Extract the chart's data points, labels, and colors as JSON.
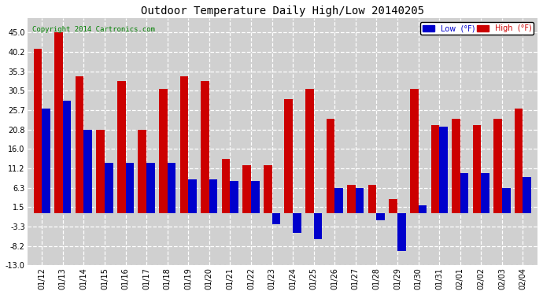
{
  "title": "Outdoor Temperature Daily High/Low 20140205",
  "copyright": "Copyright 2014 Cartronics.com",
  "legend_low": "Low  (°F)",
  "legend_high": "High  (°F)",
  "low_color": "#0000cc",
  "high_color": "#cc0000",
  "dates": [
    "01/12",
    "01/13",
    "01/14",
    "01/15",
    "01/16",
    "01/17",
    "01/18",
    "01/19",
    "01/20",
    "01/21",
    "01/22",
    "01/23",
    "01/24",
    "01/25",
    "01/26",
    "01/27",
    "01/28",
    "01/29",
    "01/30",
    "01/31",
    "02/01",
    "02/02",
    "02/03",
    "02/04"
  ],
  "high_values": [
    41,
    45,
    34,
    20.8,
    33,
    20.8,
    31,
    34,
    33,
    13.5,
    12,
    12,
    28.5,
    31,
    23.5,
    7,
    7,
    3.5,
    31,
    22,
    23.5,
    22,
    23.5,
    26
  ],
  "low_values": [
    26,
    28,
    20.8,
    12.5,
    12.5,
    12.5,
    12.5,
    8.5,
    8.5,
    8,
    8,
    -2.8,
    -5,
    -6.5,
    6.3,
    6.3,
    -1.7,
    -9.5,
    2,
    21.5,
    10,
    10,
    6.3,
    9
  ],
  "ylim_min": -13.0,
  "ylim_max": 48.5,
  "yticks": [
    45.0,
    40.2,
    35.3,
    30.5,
    25.7,
    20.8,
    16.0,
    11.2,
    6.3,
    1.5,
    -3.3,
    -8.2,
    -13.0
  ],
  "bg_color": "#ffffff",
  "plot_bg_color": "#d0d0d0",
  "grid_color": "#ffffff",
  "bar_width": 0.4
}
